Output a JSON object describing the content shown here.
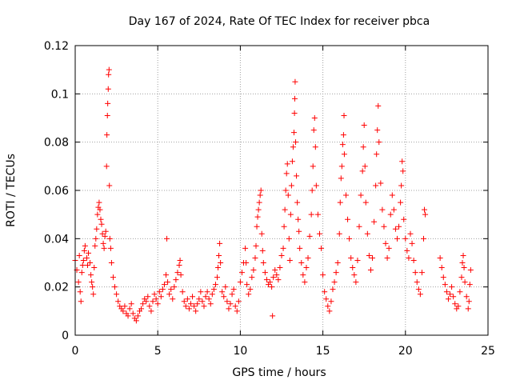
{
  "chart_data": {
    "type": "scatter",
    "title": "Day 167 of 2024, Rate Of TEC Index for receiver pbca",
    "xlabel": "GPS time / hours",
    "ylabel": "ROTI / TECUs",
    "xlim": [
      0,
      25
    ],
    "ylim": [
      0,
      0.12
    ],
    "x_ticks": [
      0,
      5,
      10,
      15,
      20,
      25
    ],
    "x_tick_labels": [
      "0",
      "5",
      "10",
      "15",
      "20",
      "25"
    ],
    "y_ticks": [
      0,
      0.02,
      0.04,
      0.06,
      0.08,
      0.1,
      0.12
    ],
    "y_tick_labels": [
      "0",
      "0.02",
      "0.04",
      "0.06",
      "0.08",
      "0.1",
      "0.12"
    ],
    "grid": true,
    "marker": "+",
    "color": "#ff0000",
    "series": [
      {
        "name": "ROTI",
        "points": [
          [
            0.0,
            0.031
          ],
          [
            0.1,
            0.027
          ],
          [
            0.2,
            0.022
          ],
          [
            0.25,
            0.033
          ],
          [
            0.3,
            0.018
          ],
          [
            0.35,
            0.014
          ],
          [
            0.4,
            0.026
          ],
          [
            0.45,
            0.029
          ],
          [
            0.5,
            0.031
          ],
          [
            0.55,
            0.035
          ],
          [
            0.6,
            0.037
          ],
          [
            0.7,
            0.032
          ],
          [
            0.75,
            0.029
          ],
          [
            0.8,
            0.034
          ],
          [
            0.9,
            0.03
          ],
          [
            0.95,
            0.025
          ],
          [
            1.0,
            0.022
          ],
          [
            1.05,
            0.02
          ],
          [
            1.1,
            0.017
          ],
          [
            1.15,
            0.028
          ],
          [
            1.2,
            0.037
          ],
          [
            1.25,
            0.04
          ],
          [
            1.3,
            0.044
          ],
          [
            1.35,
            0.05
          ],
          [
            1.4,
            0.053
          ],
          [
            1.45,
            0.055
          ],
          [
            1.5,
            0.052
          ],
          [
            1.55,
            0.048
          ],
          [
            1.6,
            0.046
          ],
          [
            1.65,
            0.042
          ],
          [
            1.7,
            0.038
          ],
          [
            1.75,
            0.036
          ],
          [
            1.8,
            0.041
          ],
          [
            1.85,
            0.043
          ],
          [
            1.9,
            0.07
          ],
          [
            1.92,
            0.083
          ],
          [
            1.95,
            0.091
          ],
          [
            1.97,
            0.096
          ],
          [
            2.0,
            0.102
          ],
          [
            2.02,
            0.108
          ],
          [
            2.05,
            0.11
          ],
          [
            2.07,
            0.062
          ],
          [
            2.1,
            0.04
          ],
          [
            2.15,
            0.036
          ],
          [
            2.2,
            0.03
          ],
          [
            2.3,
            0.024
          ],
          [
            2.4,
            0.02
          ],
          [
            2.5,
            0.017
          ],
          [
            2.6,
            0.014
          ],
          [
            2.7,
            0.012
          ],
          [
            2.8,
            0.011
          ],
          [
            2.9,
            0.01
          ],
          [
            3.0,
            0.012
          ],
          [
            3.1,
            0.009
          ],
          [
            3.2,
            0.008
          ],
          [
            3.3,
            0.011
          ],
          [
            3.4,
            0.013
          ],
          [
            3.5,
            0.009
          ],
          [
            3.6,
            0.007
          ],
          [
            3.7,
            0.006
          ],
          [
            3.8,
            0.008
          ],
          [
            3.9,
            0.01
          ],
          [
            4.0,
            0.011
          ],
          [
            4.1,
            0.013
          ],
          [
            4.2,
            0.015
          ],
          [
            4.3,
            0.014
          ],
          [
            4.4,
            0.016
          ],
          [
            4.5,
            0.012
          ],
          [
            4.6,
            0.01
          ],
          [
            4.7,
            0.014
          ],
          [
            4.8,
            0.017
          ],
          [
            4.9,
            0.015
          ],
          [
            5.0,
            0.013
          ],
          [
            5.1,
            0.018
          ],
          [
            5.2,
            0.016
          ],
          [
            5.3,
            0.019
          ],
          [
            5.4,
            0.021
          ],
          [
            5.5,
            0.025
          ],
          [
            5.55,
            0.04
          ],
          [
            5.6,
            0.022
          ],
          [
            5.7,
            0.017
          ],
          [
            5.8,
            0.019
          ],
          [
            5.9,
            0.015
          ],
          [
            6.0,
            0.02
          ],
          [
            6.1,
            0.023
          ],
          [
            6.2,
            0.026
          ],
          [
            6.3,
            0.029
          ],
          [
            6.35,
            0.031
          ],
          [
            6.4,
            0.025
          ],
          [
            6.5,
            0.018
          ],
          [
            6.6,
            0.014
          ],
          [
            6.7,
            0.012
          ],
          [
            6.8,
            0.015
          ],
          [
            6.9,
            0.011
          ],
          [
            7.0,
            0.013
          ],
          [
            7.1,
            0.016
          ],
          [
            7.2,
            0.012
          ],
          [
            7.3,
            0.01
          ],
          [
            7.4,
            0.013
          ],
          [
            7.5,
            0.015
          ],
          [
            7.6,
            0.018
          ],
          [
            7.7,
            0.014
          ],
          [
            7.8,
            0.012
          ],
          [
            7.9,
            0.016
          ],
          [
            8.0,
            0.018
          ],
          [
            8.1,
            0.015
          ],
          [
            8.2,
            0.013
          ],
          [
            8.3,
            0.017
          ],
          [
            8.4,
            0.019
          ],
          [
            8.5,
            0.021
          ],
          [
            8.6,
            0.024
          ],
          [
            8.65,
            0.028
          ],
          [
            8.7,
            0.033
          ],
          [
            8.75,
            0.038
          ],
          [
            8.8,
            0.03
          ],
          [
            8.9,
            0.018
          ],
          [
            9.0,
            0.016
          ],
          [
            9.1,
            0.02
          ],
          [
            9.2,
            0.014
          ],
          [
            9.3,
            0.011
          ],
          [
            9.4,
            0.013
          ],
          [
            9.5,
            0.017
          ],
          [
            9.6,
            0.019
          ],
          [
            9.7,
            0.012
          ],
          [
            9.8,
            0.01
          ],
          [
            9.9,
            0.014
          ],
          [
            10.0,
            0.022
          ],
          [
            10.1,
            0.026
          ],
          [
            10.2,
            0.03
          ],
          [
            10.3,
            0.036
          ],
          [
            10.35,
            0.03
          ],
          [
            10.4,
            0.021
          ],
          [
            10.5,
            0.017
          ],
          [
            10.6,
            0.019
          ],
          [
            10.7,
            0.024
          ],
          [
            10.8,
            0.027
          ],
          [
            10.9,
            0.032
          ],
          [
            10.95,
            0.037
          ],
          [
            11.0,
            0.045
          ],
          [
            11.05,
            0.049
          ],
          [
            11.1,
            0.052
          ],
          [
            11.15,
            0.055
          ],
          [
            11.2,
            0.058
          ],
          [
            11.25,
            0.06
          ],
          [
            11.3,
            0.042
          ],
          [
            11.35,
            0.035
          ],
          [
            11.4,
            0.03
          ],
          [
            11.5,
            0.026
          ],
          [
            11.6,
            0.023
          ],
          [
            11.7,
            0.021
          ],
          [
            11.8,
            0.022
          ],
          [
            11.9,
            0.02
          ],
          [
            11.95,
            0.008
          ],
          [
            12.0,
            0.024
          ],
          [
            12.1,
            0.027
          ],
          [
            12.2,
            0.025
          ],
          [
            12.3,
            0.023
          ],
          [
            12.4,
            0.028
          ],
          [
            12.5,
            0.033
          ],
          [
            12.6,
            0.036
          ],
          [
            12.65,
            0.045
          ],
          [
            12.7,
            0.052
          ],
          [
            12.75,
            0.06
          ],
          [
            12.8,
            0.067
          ],
          [
            12.85,
            0.071
          ],
          [
            12.9,
            0.058
          ],
          [
            12.95,
            0.04
          ],
          [
            13.0,
            0.031
          ],
          [
            13.05,
            0.05
          ],
          [
            13.1,
            0.062
          ],
          [
            13.15,
            0.072
          ],
          [
            13.2,
            0.078
          ],
          [
            13.25,
            0.084
          ],
          [
            13.28,
            0.092
          ],
          [
            13.3,
            0.098
          ],
          [
            13.32,
            0.105
          ],
          [
            13.35,
            0.08
          ],
          [
            13.4,
            0.066
          ],
          [
            13.45,
            0.055
          ],
          [
            13.5,
            0.048
          ],
          [
            13.55,
            0.043
          ],
          [
            13.6,
            0.036
          ],
          [
            13.7,
            0.03
          ],
          [
            13.8,
            0.025
          ],
          [
            13.9,
            0.022
          ],
          [
            14.0,
            0.028
          ],
          [
            14.1,
            0.032
          ],
          [
            14.2,
            0.041
          ],
          [
            14.3,
            0.05
          ],
          [
            14.35,
            0.06
          ],
          [
            14.4,
            0.07
          ],
          [
            14.45,
            0.085
          ],
          [
            14.5,
            0.09
          ],
          [
            14.55,
            0.078
          ],
          [
            14.6,
            0.062
          ],
          [
            14.7,
            0.05
          ],
          [
            14.8,
            0.042
          ],
          [
            14.9,
            0.036
          ],
          [
            15.0,
            0.025
          ],
          [
            15.1,
            0.018
          ],
          [
            15.2,
            0.015
          ],
          [
            15.3,
            0.012
          ],
          [
            15.4,
            0.01
          ],
          [
            15.5,
            0.014
          ],
          [
            15.6,
            0.019
          ],
          [
            15.7,
            0.022
          ],
          [
            15.8,
            0.026
          ],
          [
            15.9,
            0.03
          ],
          [
            16.0,
            0.042
          ],
          [
            16.05,
            0.055
          ],
          [
            16.1,
            0.065
          ],
          [
            16.15,
            0.07
          ],
          [
            16.2,
            0.079
          ],
          [
            16.25,
            0.083
          ],
          [
            16.28,
            0.091
          ],
          [
            16.3,
            0.075
          ],
          [
            16.4,
            0.058
          ],
          [
            16.5,
            0.048
          ],
          [
            16.6,
            0.04
          ],
          [
            16.7,
            0.032
          ],
          [
            16.8,
            0.028
          ],
          [
            16.9,
            0.025
          ],
          [
            17.0,
            0.022
          ],
          [
            17.1,
            0.031
          ],
          [
            17.2,
            0.045
          ],
          [
            17.3,
            0.058
          ],
          [
            17.4,
            0.068
          ],
          [
            17.45,
            0.078
          ],
          [
            17.5,
            0.087
          ],
          [
            17.55,
            0.07
          ],
          [
            17.6,
            0.055
          ],
          [
            17.7,
            0.042
          ],
          [
            17.8,
            0.033
          ],
          [
            17.9,
            0.027
          ],
          [
            18.0,
            0.032
          ],
          [
            18.1,
            0.047
          ],
          [
            18.2,
            0.062
          ],
          [
            18.25,
            0.075
          ],
          [
            18.3,
            0.085
          ],
          [
            18.35,
            0.095
          ],
          [
            18.4,
            0.08
          ],
          [
            18.5,
            0.063
          ],
          [
            18.6,
            0.052
          ],
          [
            18.7,
            0.045
          ],
          [
            18.8,
            0.038
          ],
          [
            18.9,
            0.032
          ],
          [
            19.0,
            0.036
          ],
          [
            19.1,
            0.05
          ],
          [
            19.2,
            0.058
          ],
          [
            19.3,
            0.052
          ],
          [
            19.4,
            0.044
          ],
          [
            19.5,
            0.04
          ],
          [
            19.6,
            0.045
          ],
          [
            19.7,
            0.055
          ],
          [
            19.75,
            0.062
          ],
          [
            19.8,
            0.072
          ],
          [
            19.85,
            0.068
          ],
          [
            19.9,
            0.048
          ],
          [
            20.0,
            0.04
          ],
          [
            20.1,
            0.035
          ],
          [
            20.2,
            0.032
          ],
          [
            20.3,
            0.042
          ],
          [
            20.4,
            0.038
          ],
          [
            20.5,
            0.031
          ],
          [
            20.6,
            0.026
          ],
          [
            20.7,
            0.022
          ],
          [
            20.8,
            0.019
          ],
          [
            20.9,
            0.017
          ],
          [
            21.0,
            0.026
          ],
          [
            21.1,
            0.04
          ],
          [
            21.15,
            0.052
          ],
          [
            21.2,
            0.05
          ],
          [
            22.1,
            0.032
          ],
          [
            22.2,
            0.028
          ],
          [
            22.3,
            0.024
          ],
          [
            22.4,
            0.021
          ],
          [
            22.5,
            0.018
          ],
          [
            22.6,
            0.015
          ],
          [
            22.7,
            0.017
          ],
          [
            22.8,
            0.02
          ],
          [
            22.9,
            0.016
          ],
          [
            23.0,
            0.013
          ],
          [
            23.1,
            0.011
          ],
          [
            23.2,
            0.012
          ],
          [
            23.3,
            0.018
          ],
          [
            23.4,
            0.024
          ],
          [
            23.45,
            0.03
          ],
          [
            23.5,
            0.033
          ],
          [
            23.55,
            0.028
          ],
          [
            23.6,
            0.022
          ],
          [
            23.7,
            0.016
          ],
          [
            23.8,
            0.011
          ],
          [
            23.85,
            0.014
          ],
          [
            23.9,
            0.021
          ],
          [
            23.95,
            0.027
          ]
        ]
      }
    ]
  }
}
